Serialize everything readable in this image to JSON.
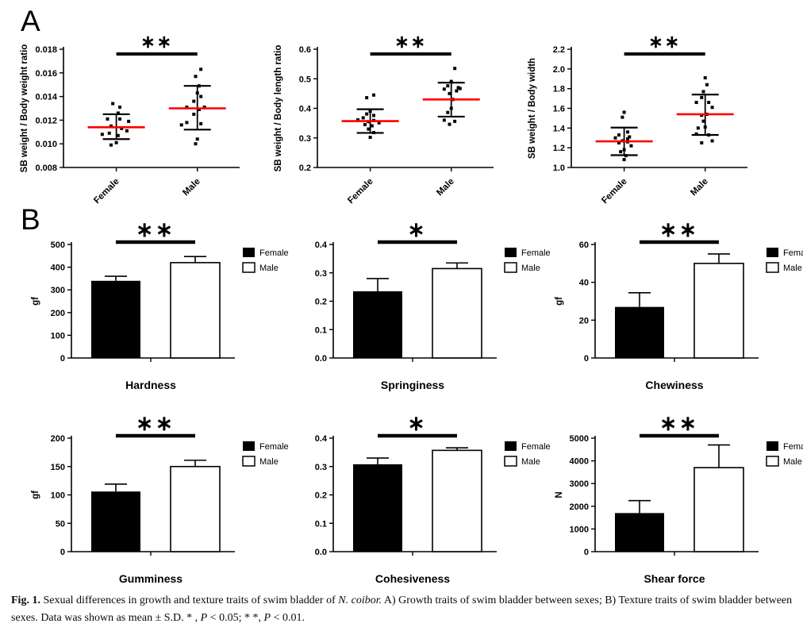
{
  "panels": {
    "a_label": "A",
    "b_label": "B"
  },
  "colors": {
    "mean_line": "#ff0000",
    "bar_female": "#000000",
    "bar_male": "#ffffff",
    "axis": "#000000"
  },
  "legend_labels": {
    "female": "Female",
    "male": "Male"
  },
  "caption": {
    "label": "Fig. 1.",
    "segments": [
      {
        "style": "normal",
        "text": " Sexual differences in growth and texture traits of swim bladder of "
      },
      {
        "style": "italic",
        "text": "N. coibor."
      },
      {
        "style": "normal",
        "text": " A) Growth traits of swim bladder between sexes; B) Texture traits of swim bladder between sexes. Data was shown as mean ± S.D. * , "
      },
      {
        "style": "italic",
        "text": "P"
      },
      {
        "style": "normal",
        "text": " < 0.05; * *, "
      },
      {
        "style": "italic",
        "text": "P"
      },
      {
        "style": "normal",
        "text": " < 0.01."
      }
    ]
  },
  "chart_data": [
    {
      "id": "sb-weight-body-weight-ratio",
      "panel": "A",
      "type": "scatter",
      "ylabel": "SB weight / Body weight ratio",
      "ylim": [
        0.008,
        0.018
      ],
      "yticks": [
        "0.008",
        "0.010",
        "0.012",
        "0.014",
        "0.016",
        "0.018"
      ],
      "categories": [
        "Female",
        "Male"
      ],
      "significance": "**",
      "groups": [
        {
          "name": "Female",
          "mean": 0.0114,
          "sd": [
            0.0104,
            0.0125
          ],
          "points": [
            [
              -0.02,
              0.0134
            ],
            [
              0.02,
              0.0131
            ],
            [
              0.01,
              0.0126
            ],
            [
              -0.05,
              0.0121
            ],
            [
              0.02,
              0.0121
            ],
            [
              0.07,
              0.0119
            ],
            [
              -0.03,
              0.0115
            ],
            [
              0.03,
              0.0113
            ],
            [
              0.06,
              0.0111
            ],
            [
              -0.04,
              0.0109
            ],
            [
              -0.08,
              0.0108
            ],
            [
              0.01,
              0.0107
            ],
            [
              0.0,
              0.0101
            ],
            [
              -0.03,
              0.0099
            ]
          ]
        },
        {
          "name": "Male",
          "mean": 0.013,
          "sd": [
            0.0112,
            0.0149
          ],
          "points": [
            [
              0.02,
              0.0163
            ],
            [
              -0.01,
              0.0157
            ],
            [
              0.01,
              0.0149
            ],
            [
              0.0,
              0.0143
            ],
            [
              0.02,
              0.014
            ],
            [
              -0.02,
              0.0136
            ],
            [
              -0.06,
              0.0131
            ],
            [
              0.04,
              0.0131
            ],
            [
              0.01,
              0.0129
            ],
            [
              -0.02,
              0.0125
            ],
            [
              -0.06,
              0.0118
            ],
            [
              0.02,
              0.0117
            ],
            [
              -0.09,
              0.0116
            ],
            [
              0.0,
              0.0104
            ],
            [
              -0.01,
              0.01
            ]
          ]
        }
      ]
    },
    {
      "id": "sb-weight-body-length-ratio",
      "panel": "A",
      "type": "scatter",
      "ylabel": "SB weight / Body length ratio",
      "ylim": [
        0.2,
        0.6
      ],
      "yticks": [
        "0.2",
        "0.3",
        "0.4",
        "0.5",
        "0.6"
      ],
      "categories": [
        "Female",
        "Male"
      ],
      "significance": "**",
      "groups": [
        {
          "name": "Female",
          "mean": 0.357,
          "sd": [
            0.317,
            0.397
          ],
          "points": [
            [
              0.02,
              0.445
            ],
            [
              -0.02,
              0.436
            ],
            [
              0.0,
              0.39
            ],
            [
              -0.02,
              0.381
            ],
            [
              0.02,
              0.376
            ],
            [
              -0.04,
              0.368
            ],
            [
              -0.07,
              0.361
            ],
            [
              0.02,
              0.359
            ],
            [
              -0.01,
              0.355
            ],
            [
              0.05,
              0.351
            ],
            [
              -0.03,
              0.345
            ],
            [
              0.01,
              0.341
            ],
            [
              -0.01,
              0.33
            ],
            [
              0.02,
              0.318
            ],
            [
              0.0,
              0.302
            ]
          ]
        },
        {
          "name": "Male",
          "mean": 0.43,
          "sd": [
            0.372,
            0.487
          ],
          "points": [
            [
              0.02,
              0.535
            ],
            [
              0.0,
              0.491
            ],
            [
              -0.02,
              0.476
            ],
            [
              0.04,
              0.47
            ],
            [
              0.05,
              0.467
            ],
            [
              -0.04,
              0.465
            ],
            [
              0.03,
              0.459
            ],
            [
              -0.01,
              0.45
            ],
            [
              0.01,
              0.43
            ],
            [
              0.0,
              0.4
            ],
            [
              -0.02,
              0.386
            ],
            [
              -0.04,
              0.36
            ],
            [
              0.02,
              0.356
            ],
            [
              -0.01,
              0.346
            ]
          ]
        }
      ]
    },
    {
      "id": "sb-weight-body-width",
      "panel": "A",
      "type": "scatter",
      "ylabel": "SB weight / Body width",
      "ylim": [
        1.0,
        2.2
      ],
      "yticks": [
        "1.0",
        "1.2",
        "1.4",
        "1.6",
        "1.8",
        "2.0",
        "2.2"
      ],
      "categories": [
        "Female",
        "Male"
      ],
      "significance": "**",
      "groups": [
        {
          "name": "Female",
          "mean": 1.265,
          "sd": [
            1.125,
            1.405
          ],
          "points": [
            [
              0.0,
              1.56
            ],
            [
              -0.01,
              1.51
            ],
            [
              0.02,
              1.36
            ],
            [
              -0.03,
              1.33
            ],
            [
              0.03,
              1.31
            ],
            [
              -0.05,
              1.3
            ],
            [
              0.02,
              1.29
            ],
            [
              -0.01,
              1.27
            ],
            [
              0.02,
              1.26
            ],
            [
              -0.03,
              1.25
            ],
            [
              0.04,
              1.22
            ],
            [
              0.0,
              1.18
            ],
            [
              -0.02,
              1.16
            ],
            [
              0.01,
              1.12
            ],
            [
              0.0,
              1.08
            ]
          ]
        },
        {
          "name": "Male",
          "mean": 1.54,
          "sd": [
            1.33,
            1.74
          ],
          "points": [
            [
              0.0,
              1.91
            ],
            [
              0.01,
              1.84
            ],
            [
              -0.01,
              1.77
            ],
            [
              -0.02,
              1.71
            ],
            [
              -0.05,
              1.66
            ],
            [
              0.02,
              1.66
            ],
            [
              0.04,
              1.61
            ],
            [
              0.01,
              1.54
            ],
            [
              -0.02,
              1.53
            ],
            [
              -0.01,
              1.47
            ],
            [
              0.0,
              1.41
            ],
            [
              -0.04,
              1.4
            ],
            [
              -0.05,
              1.34
            ],
            [
              0.02,
              1.33
            ],
            [
              0.04,
              1.27
            ],
            [
              -0.02,
              1.25
            ]
          ]
        }
      ]
    },
    {
      "id": "hardness",
      "panel": "B",
      "type": "bar",
      "title": "Hardness",
      "ylabel": "gf",
      "ylim": [
        0,
        500
      ],
      "yticks": [
        "0",
        "100",
        "200",
        "300",
        "400",
        "500"
      ],
      "significance": "**",
      "legend": [
        "Female",
        "Male"
      ],
      "series": [
        {
          "name": "Female",
          "value": 340,
          "error": 20,
          "fill": "#000000"
        },
        {
          "name": "Male",
          "value": 420,
          "error": 27,
          "fill": "#ffffff"
        }
      ]
    },
    {
      "id": "springiness",
      "panel": "B",
      "type": "bar",
      "title": "Springiness",
      "ylabel": "",
      "ylim": [
        0,
        0.4
      ],
      "yticks": [
        "0.0",
        "0.1",
        "0.2",
        "0.3",
        "0.4"
      ],
      "significance": "*",
      "legend": [
        "Female",
        "Male"
      ],
      "series": [
        {
          "name": "Female",
          "value": 0.235,
          "error": 0.045,
          "fill": "#000000"
        },
        {
          "name": "Male",
          "value": 0.315,
          "error": 0.02,
          "fill": "#ffffff"
        }
      ]
    },
    {
      "id": "chewiness",
      "panel": "B",
      "type": "bar",
      "title": "Chewiness",
      "ylabel": "gf",
      "ylim": [
        0,
        60
      ],
      "yticks": [
        "0",
        "20",
        "40",
        "60"
      ],
      "significance": "**",
      "legend": [
        "Female",
        "Male"
      ],
      "series": [
        {
          "name": "Female",
          "value": 27,
          "error": 7.5,
          "fill": "#000000"
        },
        {
          "name": "Male",
          "value": 50,
          "error": 5,
          "fill": "#ffffff"
        }
      ]
    },
    {
      "id": "gumminess",
      "panel": "B",
      "type": "bar",
      "title": "Gumminess",
      "ylabel": "gf",
      "ylim": [
        0,
        200
      ],
      "yticks": [
        "0",
        "50",
        "100",
        "150",
        "200"
      ],
      "significance": "**",
      "legend": [
        "Female",
        "Male"
      ],
      "series": [
        {
          "name": "Female",
          "value": 106,
          "error": 13,
          "fill": "#000000"
        },
        {
          "name": "Male",
          "value": 150,
          "error": 11,
          "fill": "#ffffff"
        }
      ]
    },
    {
      "id": "cohesiveness",
      "panel": "B",
      "type": "bar",
      "title": "Cohesiveness",
      "ylabel": "",
      "ylim": [
        0,
        0.4
      ],
      "yticks": [
        "0.0",
        "0.1",
        "0.2",
        "0.3",
        "0.4"
      ],
      "significance": "*",
      "legend": [
        "Female",
        "Male"
      ],
      "series": [
        {
          "name": "Female",
          "value": 0.308,
          "error": 0.022,
          "fill": "#000000"
        },
        {
          "name": "Male",
          "value": 0.357,
          "error": 0.009,
          "fill": "#ffffff"
        }
      ]
    },
    {
      "id": "shear-force",
      "panel": "B",
      "type": "bar",
      "title": "Shear force",
      "ylabel": "N",
      "ylim": [
        0,
        5000
      ],
      "yticks": [
        "0",
        "1000",
        "2000",
        "3000",
        "4000",
        "5000"
      ],
      "significance": "**",
      "legend": [
        "Female",
        "Male"
      ],
      "series": [
        {
          "name": "Female",
          "value": 1700,
          "error": 550,
          "fill": "#000000"
        },
        {
          "name": "Male",
          "value": 3700,
          "error": 1000,
          "fill": "#ffffff"
        }
      ]
    }
  ]
}
